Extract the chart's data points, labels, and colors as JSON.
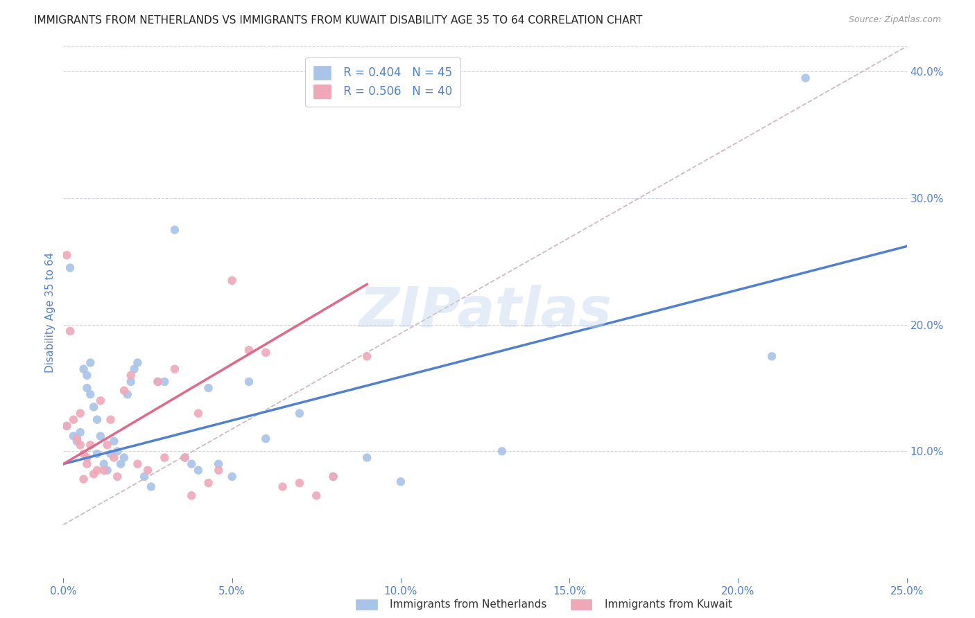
{
  "title": "IMMIGRANTS FROM NETHERLANDS VS IMMIGRANTS FROM KUWAIT DISABILITY AGE 35 TO 64 CORRELATION CHART",
  "source": "Source: ZipAtlas.com",
  "ylabel": "Disability Age 35 to 64",
  "xlim": [
    0.0,
    0.25
  ],
  "ylim": [
    0.0,
    0.42
  ],
  "xticks": [
    0.0,
    0.05,
    0.1,
    0.15,
    0.2,
    0.25
  ],
  "yticks": [
    0.1,
    0.2,
    0.3,
    0.4
  ],
  "xtick_labels": [
    "0.0%",
    "5.0%",
    "10.0%",
    "15.0%",
    "20.0%",
    "25.0%"
  ],
  "ytick_labels": [
    "10.0%",
    "20.0%",
    "30.0%",
    "40.0%"
  ],
  "legend_blue_r": "R = 0.404",
  "legend_blue_n": "N = 45",
  "legend_pink_r": "R = 0.506",
  "legend_pink_n": "N = 40",
  "blue_color": "#a8c4e8",
  "pink_color": "#f0a8b8",
  "blue_line_color": "#5080d0",
  "pink_line_color": "#e06888",
  "dashed_line_color": "#d0b8c0",
  "watermark_text": "ZIPatlas",
  "title_fontsize": 11,
  "tick_color": "#5080d0",
  "background_color": "#ffffff",
  "grid_color": "#d4d4dc",
  "marker_size": 80,
  "blue_scatter_x": [
    0.001,
    0.002,
    0.003,
    0.004,
    0.005,
    0.006,
    0.007,
    0.007,
    0.008,
    0.008,
    0.009,
    0.01,
    0.01,
    0.011,
    0.012,
    0.013,
    0.014,
    0.015,
    0.016,
    0.017,
    0.018,
    0.019,
    0.02,
    0.021,
    0.022,
    0.024,
    0.026,
    0.028,
    0.03,
    0.033,
    0.036,
    0.038,
    0.04,
    0.043,
    0.046,
    0.05,
    0.055,
    0.06,
    0.07,
    0.08,
    0.09,
    0.1,
    0.13,
    0.21,
    0.22
  ],
  "blue_scatter_y": [
    0.12,
    0.245,
    0.112,
    0.108,
    0.115,
    0.165,
    0.16,
    0.15,
    0.17,
    0.145,
    0.135,
    0.125,
    0.098,
    0.112,
    0.09,
    0.085,
    0.098,
    0.108,
    0.1,
    0.09,
    0.095,
    0.145,
    0.155,
    0.165,
    0.17,
    0.08,
    0.072,
    0.155,
    0.155,
    0.275,
    0.095,
    0.09,
    0.085,
    0.15,
    0.09,
    0.08,
    0.155,
    0.11,
    0.13,
    0.08,
    0.095,
    0.076,
    0.1,
    0.175,
    0.395
  ],
  "pink_scatter_x": [
    0.001,
    0.001,
    0.002,
    0.003,
    0.004,
    0.005,
    0.005,
    0.006,
    0.006,
    0.007,
    0.007,
    0.008,
    0.009,
    0.01,
    0.011,
    0.012,
    0.013,
    0.014,
    0.015,
    0.016,
    0.018,
    0.02,
    0.022,
    0.025,
    0.028,
    0.03,
    0.033,
    0.036,
    0.038,
    0.04,
    0.043,
    0.046,
    0.05,
    0.055,
    0.06,
    0.065,
    0.07,
    0.075,
    0.08,
    0.09
  ],
  "pink_scatter_y": [
    0.255,
    0.12,
    0.195,
    0.125,
    0.11,
    0.13,
    0.105,
    0.098,
    0.078,
    0.09,
    0.095,
    0.105,
    0.082,
    0.085,
    0.14,
    0.085,
    0.105,
    0.125,
    0.095,
    0.08,
    0.148,
    0.16,
    0.09,
    0.085,
    0.155,
    0.095,
    0.165,
    0.095,
    0.065,
    0.13,
    0.075,
    0.085,
    0.235,
    0.18,
    0.178,
    0.072,
    0.075,
    0.065,
    0.08,
    0.175
  ],
  "blue_line_x0": 0.0,
  "blue_line_y0": 0.09,
  "blue_line_x1": 0.25,
  "blue_line_y1": 0.262,
  "pink_line_x0": 0.0,
  "pink_line_y0": 0.09,
  "pink_line_x1": 0.09,
  "pink_line_y1": 0.232,
  "dash_line_x0": 0.0,
  "dash_line_y0": 0.042,
  "dash_line_x1": 0.25,
  "dash_line_y1": 0.42
}
